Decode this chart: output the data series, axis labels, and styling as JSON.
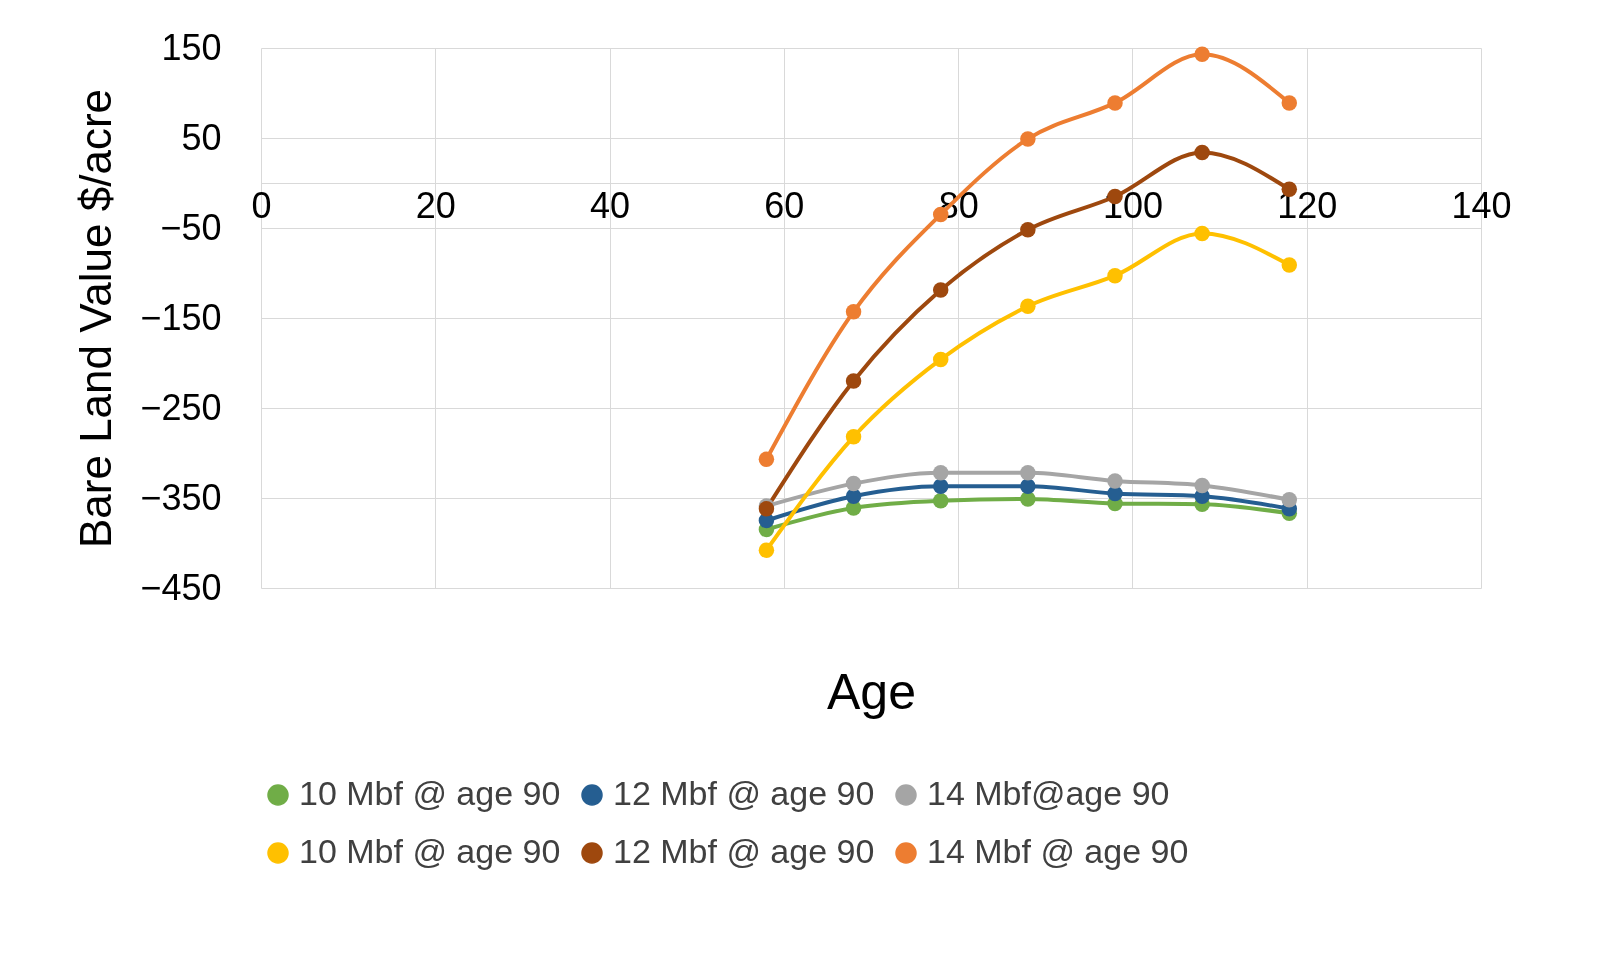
{
  "chart_data": {
    "type": "line",
    "xlabel": "Age",
    "ylabel": "Bare Land Value $/acre",
    "xlim": [
      0,
      140
    ],
    "xticks": [
      0,
      20,
      40,
      60,
      80,
      100,
      120,
      140
    ],
    "ylim": [
      -450,
      150
    ],
    "yticks": [
      -450,
      -350,
      -250,
      -150,
      -50,
      50,
      150
    ],
    "grid": true,
    "legend": "bottom",
    "marker": "circle",
    "line_style": "solid",
    "x": [
      58,
      68,
      78,
      88,
      98,
      108,
      118
    ],
    "series": [
      {
        "name": "10 Mbf @ age 90",
        "color": "#70ad47",
        "values": [
          -385,
          -361,
          -353,
          -351,
          -356,
          -357,
          -367
        ]
      },
      {
        "name": "12 Mbf @ age 90",
        "color": "#255e91",
        "values": [
          -375,
          -348,
          -337,
          -337,
          -345,
          -348,
          -362
        ]
      },
      {
        "name": "14 Mbf@age 90",
        "color": "#a5a5a5",
        "values": [
          -359,
          -334,
          -322,
          -322,
          -331,
          -336,
          -352
        ]
      },
      {
        "name": "10 Mbf @ age 90",
        "color": "#ffc000",
        "values": [
          -408,
          -282,
          -196,
          -137,
          -103,
          -56,
          -91
        ]
      },
      {
        "name": "12 Mbf @ age 90",
        "color": "#9e480e",
        "values": [
          -362,
          -220,
          -119,
          -52,
          -15,
          34,
          -7
        ]
      },
      {
        "name": "14 Mbf @ age 90",
        "color": "#ed7d31",
        "values": [
          -307,
          -143,
          -35,
          49,
          89,
          143,
          89
        ]
      }
    ]
  }
}
